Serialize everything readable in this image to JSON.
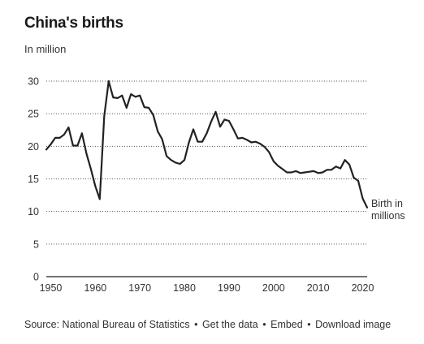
{
  "chart_data": {
    "type": "line",
    "title": "China's births",
    "subtitle": "In million",
    "xlim": [
      1949,
      2021
    ],
    "ylim": [
      0,
      30
    ],
    "x_ticks": [
      1950,
      1960,
      1970,
      1980,
      1990,
      2000,
      2010,
      2020
    ],
    "y_ticks": [
      0,
      5,
      10,
      15,
      20,
      25,
      30
    ],
    "grid": true,
    "series": [
      {
        "name": "Birth in millions",
        "color": "#222222",
        "x": [
          1949,
          1950,
          1951,
          1952,
          1953,
          1954,
          1955,
          1956,
          1957,
          1958,
          1959,
          1960,
          1961,
          1962,
          1963,
          1964,
          1965,
          1966,
          1967,
          1968,
          1969,
          1970,
          1971,
          1972,
          1973,
          1974,
          1975,
          1976,
          1977,
          1978,
          1979,
          1980,
          1981,
          1982,
          1983,
          1984,
          1985,
          1986,
          1987,
          1988,
          1989,
          1990,
          1991,
          1992,
          1993,
          1994,
          1995,
          1996,
          1997,
          1998,
          1999,
          2000,
          2001,
          2002,
          2003,
          2004,
          2005,
          2006,
          2007,
          2008,
          2009,
          2010,
          2011,
          2012,
          2013,
          2014,
          2015,
          2016,
          2017,
          2018,
          2019,
          2020,
          2021
        ],
        "y": [
          19.5,
          20.3,
          21.3,
          21.3,
          21.8,
          22.9,
          20.1,
          20.1,
          22.0,
          18.9,
          16.5,
          13.9,
          11.9,
          24.6,
          30.0,
          27.5,
          27.4,
          27.8,
          25.9,
          28.0,
          27.6,
          27.8,
          26.0,
          25.9,
          24.8,
          22.3,
          21.1,
          18.5,
          17.9,
          17.5,
          17.3,
          17.9,
          20.6,
          22.6,
          20.7,
          20.7,
          22.0,
          23.8,
          25.3,
          23.0,
          24.1,
          23.9,
          22.6,
          21.2,
          21.3,
          21.0,
          20.6,
          20.7,
          20.4,
          19.9,
          19.1,
          17.7,
          17.0,
          16.5,
          16.0,
          16.0,
          16.2,
          15.9,
          16.0,
          16.1,
          16.2,
          15.9,
          16.0,
          16.4,
          16.4,
          16.9,
          16.6,
          17.9,
          17.2,
          15.2,
          14.7,
          12.0,
          10.6
        ]
      }
    ],
    "end_label": [
      "Birth in",
      "millions"
    ]
  },
  "footer": {
    "source": "Source: National Bureau of Statistics",
    "get_data": "Get the data",
    "embed": "Embed",
    "download": "Download image",
    "separator": "•"
  }
}
